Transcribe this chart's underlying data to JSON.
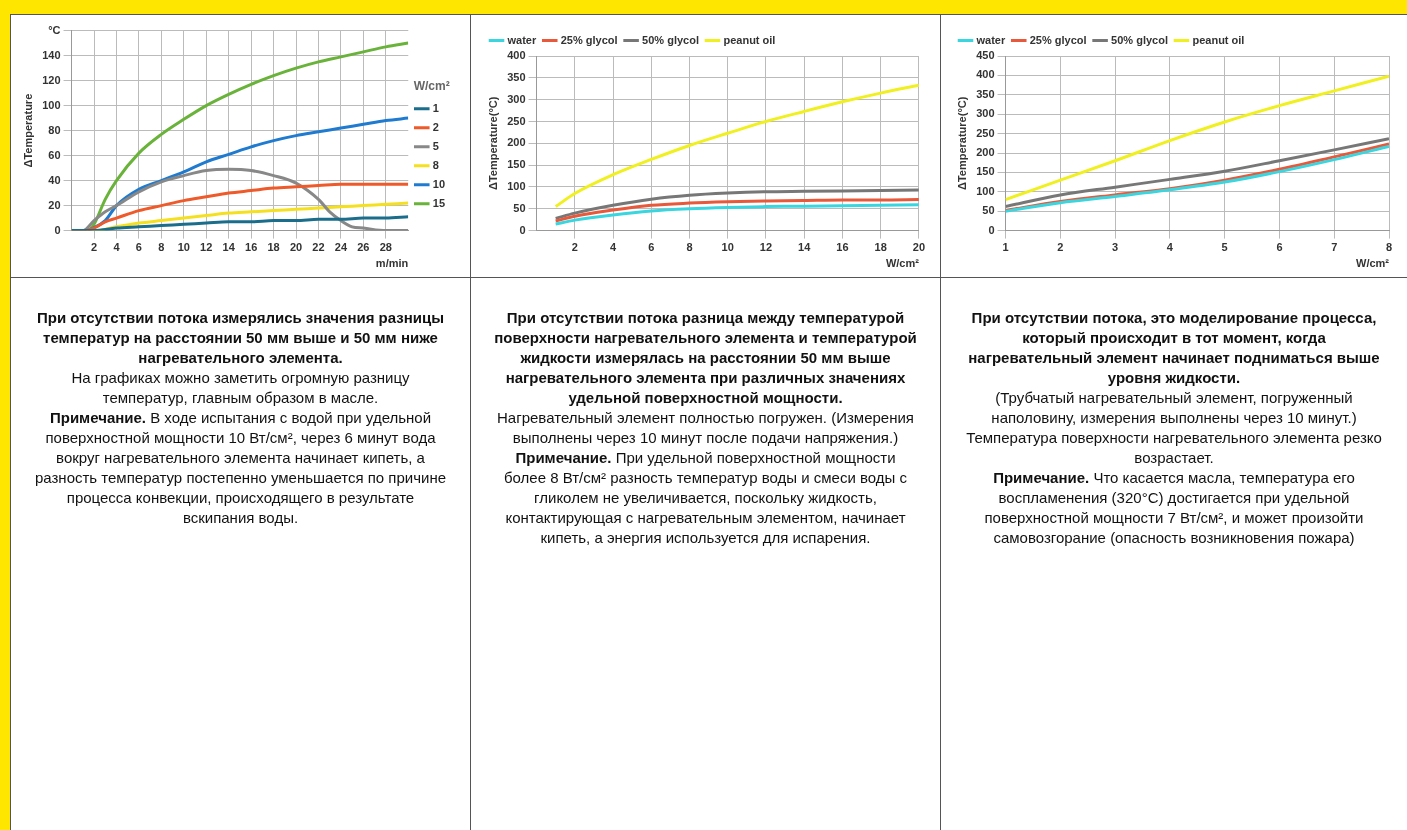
{
  "chart_data": [
    {
      "type": "line",
      "ylabel": "ΔTemperature",
      "xlabel": "m/min",
      "legend": "right",
      "legend_title": "W/cm²",
      "grid": true,
      "xlim": [
        0,
        30
      ],
      "ylim": [
        0,
        160
      ],
      "xticks": [
        2,
        4,
        6,
        8,
        10,
        12,
        14,
        16,
        18,
        20,
        22,
        24,
        26,
        28
      ],
      "yticks": [
        0,
        20,
        40,
        60,
        80,
        100,
        120,
        140,
        {
          "value": 160,
          "label": "°C"
        }
      ],
      "series": [
        {
          "name": "1",
          "color": "#1a6e8c",
          "x": [
            0,
            2,
            4,
            6,
            8,
            10,
            12,
            14,
            16,
            18,
            20,
            22,
            24,
            26,
            28,
            30
          ],
          "values": [
            0,
            0,
            2,
            3,
            4,
            5,
            6,
            7,
            7,
            8,
            8,
            9,
            9,
            10,
            10,
            11
          ]
        },
        {
          "name": "2",
          "color": "#ef5a2a",
          "x": [
            0,
            1,
            2,
            3,
            4,
            6,
            8,
            10,
            12,
            14,
            16,
            18,
            20,
            22,
            24,
            30
          ],
          "values": [
            0,
            0,
            2,
            7,
            10,
            16,
            20,
            24,
            27,
            30,
            32,
            34,
            35,
            36,
            37,
            37
          ]
        },
        {
          "name": "5",
          "color": "#888888",
          "x": [
            0,
            1,
            2,
            3,
            4,
            6,
            8,
            10,
            12,
            14,
            16,
            18,
            20,
            22,
            23,
            24,
            25,
            26,
            28,
            30
          ],
          "values": [
            0,
            0,
            8,
            15,
            20,
            31,
            39,
            44,
            48,
            49,
            48,
            44,
            38,
            25,
            15,
            8,
            3,
            2,
            0,
            0
          ]
        },
        {
          "name": "8",
          "color": "#f5e020",
          "x": [
            0,
            2,
            4,
            6,
            8,
            10,
            12,
            14,
            16,
            18,
            20,
            22,
            24,
            26,
            28,
            30
          ],
          "values": [
            0,
            0,
            3,
            6,
            8,
            10,
            12,
            14,
            15,
            16,
            17,
            18,
            19,
            20,
            21,
            22
          ]
        },
        {
          "name": "10",
          "color": "#1f7bd0",
          "x": [
            1.5,
            3,
            4,
            6,
            8,
            10,
            12,
            14,
            16,
            18,
            20,
            22,
            24,
            26,
            28,
            30
          ],
          "values": [
            0,
            8,
            20,
            33,
            40,
            47,
            55,
            61,
            67,
            72,
            76,
            79,
            82,
            85,
            88,
            90
          ]
        },
        {
          "name": "15",
          "color": "#6ab33a",
          "x": [
            1.5,
            2,
            3,
            4,
            6,
            8,
            10,
            12,
            14,
            16,
            18,
            20,
            22,
            24,
            26,
            28,
            30
          ],
          "values": [
            0,
            5,
            25,
            40,
            62,
            77,
            89,
            100,
            109,
            117,
            124,
            130,
            135,
            139,
            143,
            147,
            150
          ]
        }
      ],
      "annotations": [
        "При отсутствии потока измерялись значения разницы температур на расстоянии 50 мм выше и 50 мм ниже нагревательного элемента.",
        "На графиках можно заметить огромную разницу температур, главным образом в масле.",
        "Примечание. В ходе испытания с водой при удельной поверхностной мощности 10 Вт/см², через 6 минут вода вокруг нагревательного элемента начинает кипеть, а разность температур постепенно уменьшается по причине процесса конвекции, происходящего в результате вскипания воды."
      ]
    },
    {
      "type": "line",
      "ylabel": "ΔTemperature(°C)",
      "xlabel": "W/cm²",
      "legend": "top left",
      "grid": true,
      "xlim": [
        0,
        20
      ],
      "ylim": [
        0,
        400
      ],
      "xticks": [
        2,
        4,
        6,
        8,
        10,
        12,
        14,
        16,
        18,
        20
      ],
      "yticks": [
        0,
        50,
        100,
        150,
        200,
        250,
        300,
        350,
        400
      ],
      "x": [
        1,
        2,
        4,
        6,
        8,
        10,
        12,
        14,
        16,
        18,
        20
      ],
      "series": [
        {
          "name": "water",
          "color": "#3ad6e0",
          "values": [
            15,
            24,
            36,
            45,
            50,
            53,
            55,
            56,
            57,
            58,
            59
          ]
        },
        {
          "name": "25% glycol",
          "color": "#e8583a",
          "values": [
            22,
            33,
            47,
            58,
            63,
            66,
            68,
            69,
            70,
            70,
            71
          ]
        },
        {
          "name": "50% glycol",
          "color": "#777777",
          "values": [
            28,
            40,
            58,
            72,
            81,
            86,
            89,
            90,
            91,
            92,
            93
          ]
        },
        {
          "name": "peanut oil",
          "color": "#f0f020",
          "values": [
            55,
            85,
            128,
            163,
            195,
            223,
            250,
            273,
            295,
            315,
            333
          ]
        }
      ],
      "annotations": [
        "При отсутствии потока разница между температурой поверхности нагревательного элемента и температурой жидкости измерялась на расстоянии 50 мм выше нагревательного элемента при различных значениях удельной поверхностной мощности.",
        "Нагревательный элемент полностью погружен. (Измерения выполнены через 10 минут после подачи напряжения.)",
        "Примечание. При удельной поверхностной мощности более 8 Вт/см² разность температур воды и смеси воды с гликолем не увеличивается, поскольку жидкость, контактирующая с нагревательным элементом, начинает кипеть, а энергия используется для испарения."
      ]
    },
    {
      "type": "line",
      "ylabel": "ΔTemperature(°C)",
      "xlabel": "W/cm²",
      "legend": "top left",
      "grid": true,
      "xlim": [
        1,
        8
      ],
      "ylim": [
        0,
        450
      ],
      "xticks": [
        1,
        2,
        3,
        4,
        5,
        6,
        7,
        8
      ],
      "yticks": [
        0,
        50,
        100,
        150,
        200,
        250,
        300,
        350,
        400,
        450
      ],
      "x": [
        1,
        2,
        3,
        4,
        5,
        6,
        7,
        8
      ],
      "series": [
        {
          "name": "water",
          "color": "#3ad6e0",
          "values": [
            50,
            72,
            88,
            105,
            125,
            152,
            183,
            217
          ]
        },
        {
          "name": "25% glycol",
          "color": "#e8583a",
          "values": [
            52,
            75,
            92,
            108,
            130,
            158,
            190,
            223
          ]
        },
        {
          "name": "50% glycol",
          "color": "#777777",
          "values": [
            62,
            92,
            112,
            132,
            153,
            180,
            208,
            237
          ]
        },
        {
          "name": "peanut oil",
          "color": "#f0f020",
          "values": [
            80,
            130,
            180,
            232,
            280,
            322,
            360,
            398
          ]
        }
      ],
      "annotations": [
        "При отсутствии потока, это моделирование процесса, который происходит в тот момент, когда нагревательный элемент начинает подниматься выше уровня жидкости.",
        "(Трубчатый нагревательный элемент, погруженный наполовину, измерения выполнены через 10 минут.) Температура поверхности нагревательного элемента резко возрастает.",
        "Примечание. Что касается масла, температура его воспламенения (320°C) достигается при удельной поверхностной мощности 7 Вт/см², и может произойти самовозгорание (опасность возникновения пожара)"
      ]
    }
  ]
}
